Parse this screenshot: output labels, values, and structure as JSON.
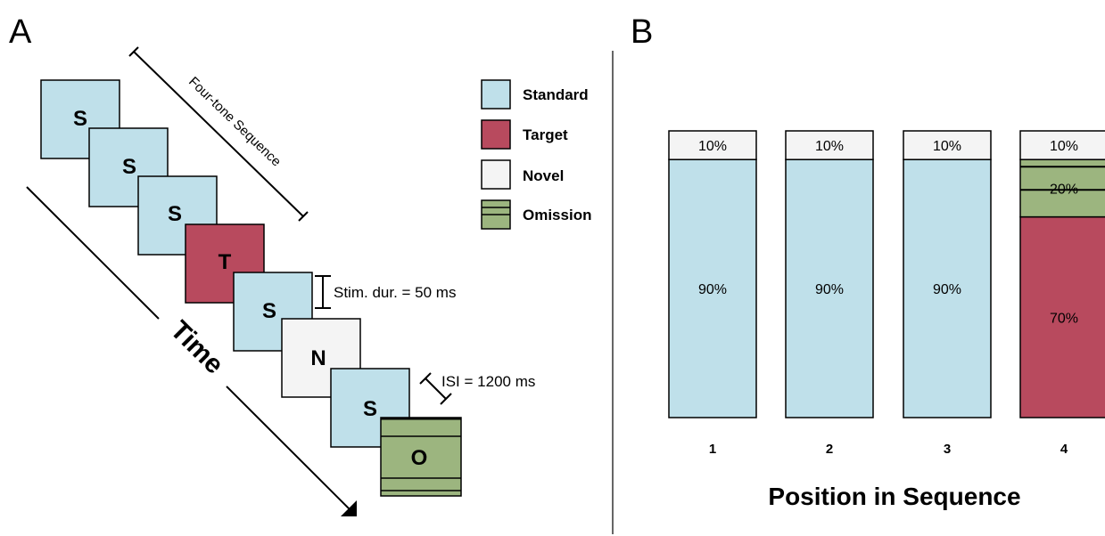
{
  "panel_a": {
    "label": "A",
    "sequence_label": "Four-tone Sequence",
    "time_label": "Time",
    "stim_duration_label": "Stim. dur. = 50 ms",
    "isi_label": "ISI = 1200 ms",
    "tiles": [
      "S",
      "S",
      "S",
      "T",
      "S",
      "N",
      "S",
      "O"
    ]
  },
  "legend": {
    "items": [
      {
        "label": "Standard",
        "color": "#bfe0ea"
      },
      {
        "label": "Target",
        "color": "#b84a5e"
      },
      {
        "label": "Novel",
        "color": "#f4f4f4"
      },
      {
        "label": "Omission",
        "color": "#9cb57f"
      }
    ]
  },
  "panel_b": {
    "label": "B",
    "xlabel": "Position in Sequence"
  },
  "chart_data": {
    "type": "bar",
    "stacked": true,
    "categories": [
      "1",
      "2",
      "3",
      "4"
    ],
    "series": [
      {
        "name": "Standard",
        "values": [
          90,
          90,
          90,
          0
        ],
        "labels": [
          "90%",
          "90%",
          "90%",
          ""
        ]
      },
      {
        "name": "Target",
        "values": [
          0,
          0,
          0,
          70
        ],
        "labels": [
          "",
          "",
          "",
          "70%"
        ]
      },
      {
        "name": "Omission",
        "values": [
          0,
          0,
          0,
          20
        ],
        "labels": [
          "",
          "",
          "",
          "20%"
        ]
      },
      {
        "name": "Novel",
        "values": [
          10,
          10,
          10,
          10
        ],
        "labels": [
          "10%",
          "10%",
          "10%",
          "10%"
        ]
      }
    ],
    "xlabel": "Position in Sequence",
    "ylim": [
      0,
      100
    ]
  }
}
